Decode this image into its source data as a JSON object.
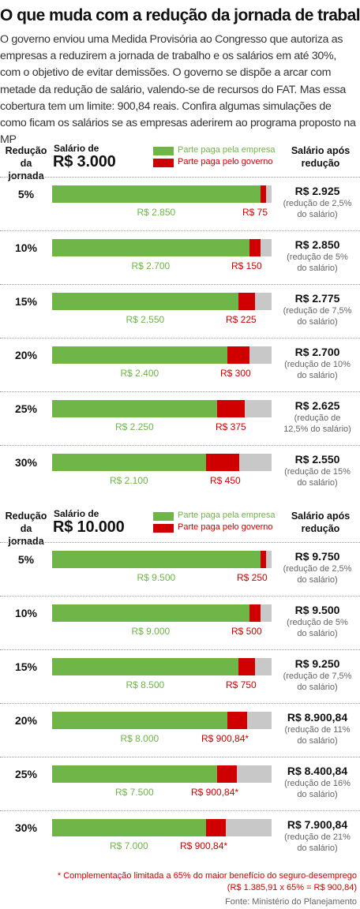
{
  "title": "O que muda com a redução da jornada de trabalho",
  "intro": "O governo enviou uma Medida Provisória ao Congresso que autoriza as empresas a reduzirem a jornada de trabalho e os salários em até 30%, com o objetivo de evitar demissões. O governo se dispõe a arcar com metade da redução de salário, valendo-se de recursos do FAT. Mas essa cobertura tem um limite: 900,84 reais. Confira algumas simulações de como ficam os salários se as empresas aderirem ao programa proposto na MP",
  "colors": {
    "company": "#70b548",
    "government": "#d00000",
    "remainder": "#c8c8c8"
  },
  "footnote_line1": "* Complementação limitada a 65% do maior benefício do seguro-desemprego",
  "footnote_line2": "(R$ 1.385,91 x 65% = R$ 900,84)",
  "source": "Fonte: Ministério do Planejamento",
  "chart_data": [
    {
      "type": "bar",
      "stacked": true,
      "orientation": "horizontal",
      "header_reduction": "Redução da jornada",
      "header_salary_label": "Salário de",
      "header_salary_value": "R$ 3.000",
      "header_after": "Salário após redução",
      "legend": [
        "Parte paga pela empresa",
        "Parte paga pelo governo"
      ],
      "full_salary": 3000,
      "categories": [
        "5%",
        "10%",
        "15%",
        "20%",
        "25%",
        "30%"
      ],
      "series": [
        {
          "name": "Parte paga pela empresa",
          "values": [
            2850,
            2700,
            2550,
            2400,
            2250,
            2100
          ]
        },
        {
          "name": "Parte paga pelo governo",
          "values": [
            75,
            150,
            225,
            300,
            375,
            450
          ]
        }
      ],
      "company_labels": [
        "R$ 2.850",
        "R$ 2.700",
        "R$ 2.550",
        "R$ 2.400",
        "R$ 2.250",
        "R$ 2.100"
      ],
      "gov_labels": [
        "R$ 75",
        "R$ 150",
        "R$ 225",
        "R$ 300",
        "R$ 375",
        "R$ 450"
      ],
      "after_labels": [
        "R$ 2.925",
        "R$ 2.850",
        "R$ 2.775",
        "R$ 2.700",
        "R$ 2.625",
        "R$ 2.550"
      ],
      "after_notes": [
        "(redução de 2,5% do salário)",
        "(redução de 5% do salário)",
        "(redução de 7,5% do salário)",
        "(redução de 10% do salário)",
        "(redução de 12,5% do salário)",
        "(redução de 15% do salário)"
      ]
    },
    {
      "type": "bar",
      "stacked": true,
      "orientation": "horizontal",
      "header_reduction": "Redução da jornada",
      "header_salary_label": "Salário de",
      "header_salary_value": "R$ 10.000",
      "header_after": "Salário após redução",
      "legend": [
        "Parte paga pela empresa",
        "Parte paga pelo governo"
      ],
      "full_salary": 10000,
      "categories": [
        "5%",
        "10%",
        "15%",
        "20%",
        "25%",
        "30%"
      ],
      "series": [
        {
          "name": "Parte paga pela empresa",
          "values": [
            9500,
            9000,
            8500,
            8000,
            7500,
            7000
          ]
        },
        {
          "name": "Parte paga pelo governo",
          "values": [
            250,
            500,
            750,
            900.84,
            900.84,
            900.84
          ]
        }
      ],
      "company_labels": [
        "R$ 9.500",
        "R$ 9.000",
        "R$ 8.500",
        "R$ 8.000",
        "R$ 7.500",
        "R$ 7.000"
      ],
      "gov_labels": [
        "R$ 250",
        "R$ 500",
        "R$ 750",
        "R$ 900,84*",
        "R$ 900,84*",
        "R$ 900,84*"
      ],
      "after_labels": [
        "R$ 9.750",
        "R$ 9.500",
        "R$ 9.250",
        "R$ 8.900,84",
        "R$ 8.400,84",
        "R$ 7.900,84"
      ],
      "after_notes": [
        "(redução de 2,5% do salário)",
        "(redução de 5% do salário)",
        "(redução de 7,5% do salário)",
        "(redução de 11% do salário)",
        "(redução de 16% do salário)",
        "(redução de 21% do salário)"
      ]
    }
  ]
}
